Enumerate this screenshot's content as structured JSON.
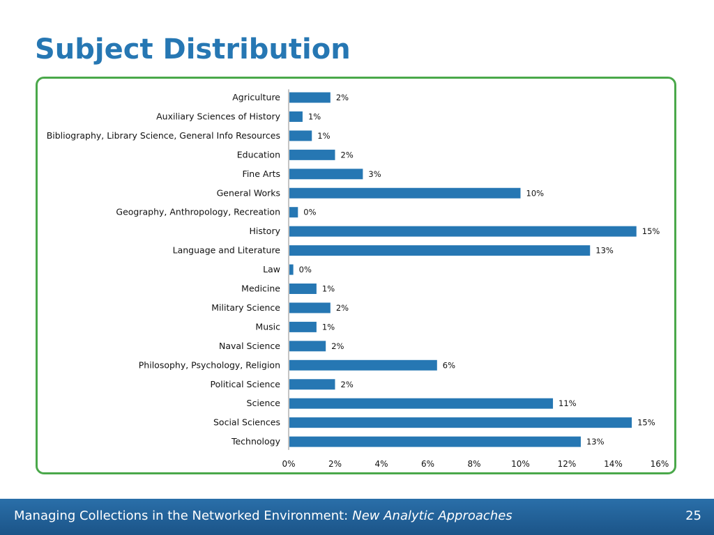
{
  "slide": {
    "title": "Subject Distribution",
    "footer_text": "Managing Collections in the Networked Environment:",
    "footer_subtitle": "New Analytic Approaches",
    "page_number": "25"
  },
  "colors": {
    "title": "#2677b3",
    "bar": "#2677b3",
    "frame": "#4aa84a",
    "footer": "#1f5f97"
  },
  "chart_data": {
    "type": "bar",
    "orientation": "horizontal",
    "categories": [
      "Agriculture",
      "Auxiliary Sciences of History",
      "Bibliography, Library Science, General Info Resources",
      "Education",
      "Fine Arts",
      "General Works",
      "Geography, Anthropology, Recreation",
      "History",
      "Language and Literature",
      "Law",
      "Medicine",
      "Military Science",
      "Music",
      "Naval Science",
      "Philosophy, Psychology, Religion",
      "Political Science",
      "Science",
      "Social Sciences",
      "Technology"
    ],
    "values": [
      1.8,
      0.6,
      1.0,
      2.0,
      3.2,
      10.0,
      0.4,
      15.0,
      13.0,
      0.2,
      1.2,
      1.8,
      1.2,
      1.6,
      6.4,
      2.0,
      11.4,
      14.8,
      12.6
    ],
    "data_labels": [
      "2%",
      "1%",
      "1%",
      "2%",
      "3%",
      "10%",
      "0%",
      "15%",
      "13%",
      "0%",
      "1%",
      "2%",
      "1%",
      "2%",
      "6%",
      "2%",
      "11%",
      "15%",
      "13%"
    ],
    "x_ticks": [
      "0%",
      "2%",
      "4%",
      "6%",
      "8%",
      "10%",
      "12%",
      "14%",
      "16%"
    ],
    "xlim": [
      0,
      16
    ],
    "grid": false,
    "legend": "none"
  }
}
